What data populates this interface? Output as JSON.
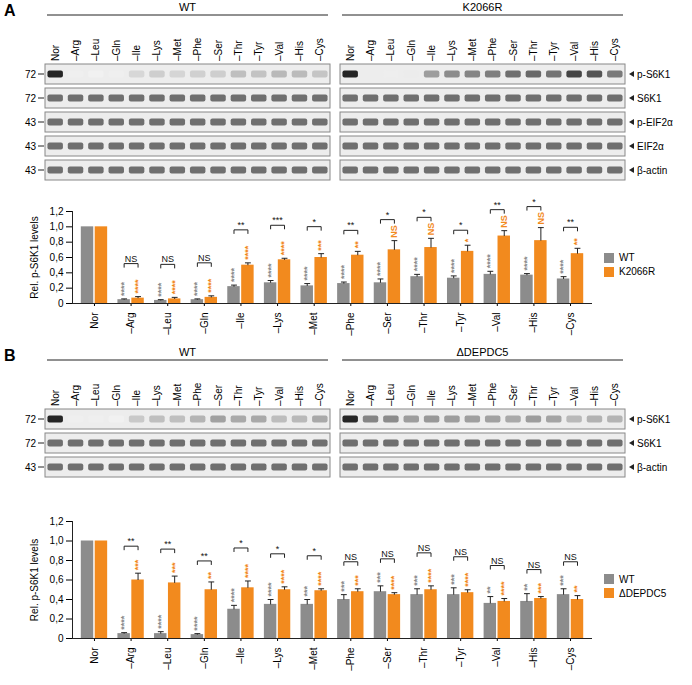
{
  "panel_labels": [
    "A",
    "B"
  ],
  "blots": [
    {
      "groups": [
        "WT",
        "K2066R"
      ],
      "lanes": [
        "Nor",
        "–Arg",
        "–Leu",
        "–Gln",
        "–Ile",
        "–Lys",
        "–Met",
        "–Phe",
        "–Ser",
        "–Thr",
        "–Tyr",
        "–Val",
        "–His",
        "–Cys"
      ],
      "rows": [
        {
          "marker": 72,
          "label": "p-S6K1"
        },
        {
          "marker": 72,
          "label": "S6K1"
        },
        {
          "marker": 43,
          "label": "p-EIF2α"
        },
        {
          "marker": 43,
          "label": "EIF2α"
        },
        {
          "marker": 43,
          "label": "β-actin"
        }
      ]
    },
    {
      "groups": [
        "WT",
        "ΔDEPDC5"
      ],
      "lanes": [
        "Nor",
        "–Arg",
        "–Leu",
        "–Gln",
        "–Ile",
        "–Lys",
        "–Met",
        "–Phe",
        "–Ser",
        "–Thr",
        "–Tyr",
        "–Val",
        "–His",
        "–Cys"
      ],
      "rows": [
        {
          "marker": 72,
          "label": "p-S6K1"
        },
        {
          "marker": 72,
          "label": "S6K1"
        },
        {
          "marker": 43,
          "label": "β-actin"
        }
      ]
    }
  ],
  "chart_data": [
    {
      "type": "bar",
      "categories": [
        "Nor",
        "–Arg",
        "–Leu",
        "–Gln",
        "–Ile",
        "–Lys",
        "–Met",
        "–Phe",
        "–Ser",
        "–Thr",
        "–Tyr",
        "–Val",
        "–His",
        "–Cys"
      ],
      "series": [
        {
          "name": "WT",
          "color": "#8c8c8c",
          "values": [
            1.0,
            0.05,
            0.04,
            0.05,
            0.22,
            0.27,
            0.23,
            0.26,
            0.27,
            0.35,
            0.33,
            0.38,
            0.37,
            0.32
          ],
          "errors": [
            0,
            0.01,
            0.01,
            0.01,
            0.02,
            0.03,
            0.03,
            0.02,
            0.05,
            0.03,
            0.03,
            0.04,
            0.02,
            0.03
          ],
          "significance": [
            null,
            "****",
            "****",
            "****",
            "****",
            "****",
            "****",
            "****",
            "****",
            "****",
            "****",
            "****",
            "****",
            "****"
          ]
        },
        {
          "name": "K2066R",
          "color": "#f28a1e",
          "values": [
            1.0,
            0.07,
            0.06,
            0.08,
            0.5,
            0.57,
            0.6,
            0.63,
            0.7,
            0.73,
            0.68,
            0.88,
            0.82,
            0.65
          ],
          "errors": [
            0,
            0.02,
            0.02,
            0.02,
            0.03,
            0.02,
            0.05,
            0.05,
            0.12,
            0.12,
            0.08,
            0.07,
            0.17,
            0.07
          ],
          "significance": [
            null,
            "****",
            "****",
            "****",
            "****",
            "****",
            "***",
            "**",
            "NS",
            "NS",
            "*",
            "NS",
            "NS",
            "**"
          ]
        }
      ],
      "comparison_significance": [
        null,
        "NS",
        "NS",
        "NS",
        "**",
        "***",
        "*",
        "**",
        "*",
        "*",
        "*",
        "**",
        "*",
        "**"
      ],
      "y_label": "Rel. p-S6K1 levels",
      "ylim": [
        0,
        1.2
      ],
      "yticks": [
        0,
        {
          "value": 0.2,
          "label": "0,2"
        },
        {
          "value": 0.4,
          "label": "0,4"
        },
        {
          "value": 0.6,
          "label": "0,6"
        },
        {
          "value": 0.8,
          "label": "0,8"
        },
        {
          "value": 1.0,
          "label": "1,0"
        },
        {
          "value": 1.2,
          "label": "1,2"
        }
      ],
      "legend": "right"
    },
    {
      "type": "bar",
      "categories": [
        "Nor",
        "–Arg",
        "–Leu",
        "–Gln",
        "–Ile",
        "–Lys",
        "–Met",
        "–Phe",
        "–Ser",
        "–Thr",
        "–Tyr",
        "–Val",
        "–His",
        "–Cys"
      ],
      "series": [
        {
          "name": "WT",
          "color": "#8c8c8c",
          "values": [
            1.0,
            0.05,
            0.05,
            0.04,
            0.3,
            0.35,
            0.35,
            0.4,
            0.48,
            0.45,
            0.45,
            0.36,
            0.38,
            0.45
          ],
          "errors": [
            0,
            0.01,
            0.02,
            0.01,
            0.04,
            0.05,
            0.05,
            0.05,
            0.06,
            0.06,
            0.07,
            0.07,
            0.08,
            0.06
          ],
          "significance": [
            null,
            "****",
            "****",
            "****",
            "****",
            "****",
            "***",
            "***",
            "***",
            "***",
            "***",
            "**",
            "**",
            "***"
          ]
        },
        {
          "name": "ΔDEPDC5",
          "color": "#f28a1e",
          "values": [
            1.0,
            0.6,
            0.57,
            0.5,
            0.52,
            0.5,
            0.49,
            0.48,
            0.45,
            0.5,
            0.47,
            0.38,
            0.41,
            0.4
          ],
          "errors": [
            0,
            0.07,
            0.07,
            0.08,
            0.07,
            0.03,
            0.02,
            0.03,
            0.02,
            0.04,
            0.03,
            0.03,
            0.02,
            0.04
          ],
          "significance": [
            null,
            "***",
            "***",
            "**",
            "****",
            "****",
            "****",
            "***",
            "****",
            "****",
            "****",
            "****",
            "***",
            "**"
          ]
        }
      ],
      "comparison_significance": [
        null,
        "**",
        "**",
        "**",
        "*",
        "*",
        "*",
        "NS",
        "NS",
        "NS",
        "NS",
        "NS",
        "NS",
        "NS"
      ],
      "y_label": "Rel. p-S6K1 levels",
      "ylim": [
        0,
        1.2
      ],
      "yticks": [
        0,
        {
          "value": 0.2,
          "label": "0,2"
        },
        {
          "value": 0.4,
          "label": "0,4"
        },
        {
          "value": 0.6,
          "label": "0,6"
        },
        {
          "value": 0.8,
          "label": "0,8"
        },
        {
          "value": 1.0,
          "label": "1,0"
        },
        {
          "value": 1.2,
          "label": "1,2"
        }
      ],
      "legend": "right"
    }
  ]
}
